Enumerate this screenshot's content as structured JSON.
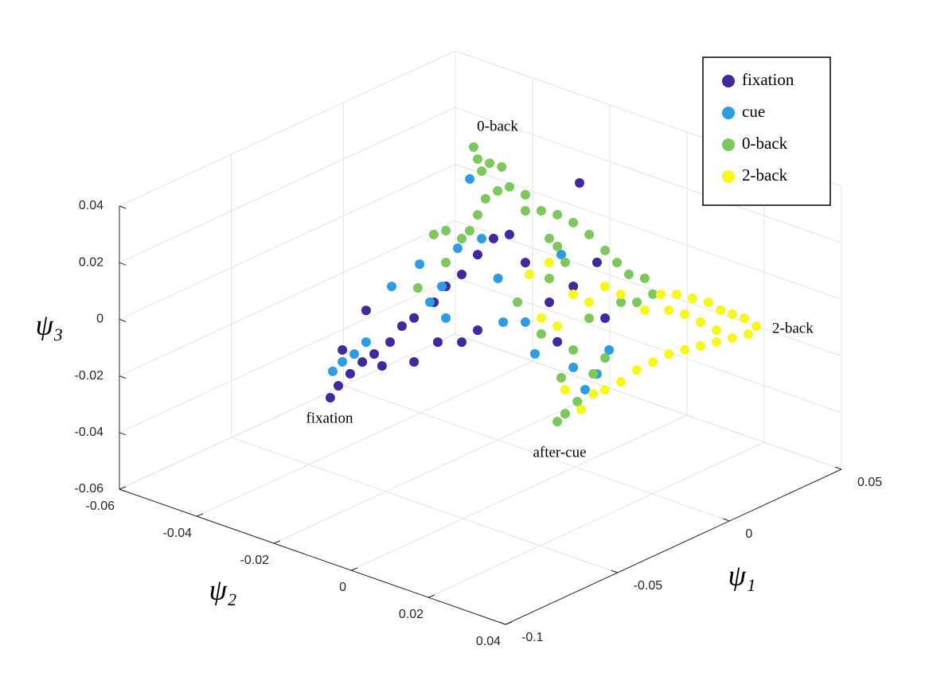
{
  "chart_data": {
    "type": "scatter3d",
    "xlabel": "ψ₁",
    "ylabel": "ψ₂",
    "zlabel": "ψ₃",
    "xlim": [
      -0.1,
      0.05
    ],
    "ylim": [
      -0.06,
      0.04
    ],
    "zlim": [
      -0.06,
      0.04
    ],
    "xticks": [
      -0.1,
      -0.05,
      0,
      0.05
    ],
    "yticks": [
      -0.06,
      -0.04,
      -0.02,
      0,
      0.02,
      0.04
    ],
    "zticks": [
      -0.06,
      -0.04,
      -0.02,
      0,
      0.02,
      0.04
    ],
    "grid": true,
    "legend": "northeast",
    "annotations": [
      "0-back",
      "2-back",
      "fixation",
      "after-cue"
    ],
    "series": [
      {
        "name": "fixation",
        "color": "#40299f",
        "x": [
          -0.0748,
          -0.0712,
          -0.0659,
          -0.0605,
          -0.0552,
          -0.0481,
          -0.0428,
          -0.0374,
          -0.0285,
          -0.0232,
          -0.0161,
          -0.009,
          -0.0019,
          0.0052,
          0.0123,
          0.023,
          0.0337,
          0.0443,
          0.0365,
          -0.0161,
          -0.009,
          -0.0268,
          -0.0374,
          -0.0517,
          -0.0588,
          -0.0694,
          0.0266,
          0.0479
        ],
        "y": [
          -0.02,
          -0.02,
          -0.02,
          -0.02,
          -0.02,
          -0.02,
          -0.02,
          -0.02,
          -0.02,
          -0.02,
          -0.02,
          -0.02,
          -0.02,
          -0.02,
          -0.02,
          -0.02,
          -0.02,
          -0.02,
          -0.02,
          -0.02,
          -0.02,
          -0.02,
          -0.02,
          -0.02,
          -0.02,
          -0.02,
          -0.02,
          -0.02
        ],
        "z": [
          -0.0178,
          -0.0149,
          -0.0126,
          -0.0104,
          -0.0095,
          -0.0079,
          -0.0042,
          -0.0033,
          -0.001,
          0.0027,
          0.0043,
          0.0087,
          0.0118,
          0.0106,
          -0.0019,
          -0.0198,
          -0.0181,
          -0.0135,
          0.0174,
          -0.0196,
          -0.018,
          -0.0157,
          -0.0188,
          -0.015,
          0.0072,
          -0.0029,
          -0.0351,
          -0.0345
        ]
      },
      {
        "name": "cue",
        "color": "#2c9ce4",
        "x": [
          -0.0737,
          -0.0694,
          -0.0641,
          -0.0588,
          -0.0474,
          -0.0349,
          -0.0303,
          -0.025,
          -0.0179,
          -0.0125,
          -0.0072,
          0.0001,
          0.0024,
          0.0123,
          0.0166,
          0.0283,
          0.0337,
          0.039,
          0.0497,
          0.0443,
          -0.0232
        ],
        "y": [
          -0.02,
          -0.02,
          -0.02,
          -0.02,
          -0.02,
          -0.02,
          -0.02,
          -0.02,
          -0.02,
          -0.02,
          -0.02,
          -0.02,
          -0.02,
          -0.02,
          -0.02,
          -0.02,
          -0.02,
          -0.02,
          -0.02,
          -0.02,
          -0.02
        ],
        "z": [
          -0.0089,
          -0.0071,
          -0.0063,
          -0.004,
          0.0115,
          0.0148,
          -0.0003,
          0.0033,
          0.0142,
          0.0367,
          0.0137,
          -0.003,
          -0.0193,
          -0.0229,
          -0.0357,
          -0.0049,
          -0.0467,
          -0.0565,
          -0.0464,
          -0.0529,
          -0.0085
        ]
      },
      {
        "name": "0-back",
        "color": "#7cc85c",
        "x": [
          0.0237,
          0.0255,
          0.0273,
          0.0308,
          0.0362,
          0.0344,
          0.029,
          0.0255,
          0.0219,
          0.0113,
          0.0059,
          0.0184,
          0.0397,
          0.0468,
          0.0194,
          0.0266,
          0.0337,
          0.0408,
          -0.0038,
          0.0015,
          0.0068,
          0.0139,
          0.0104,
          0.0175,
          0.0033,
          0.0123,
          0.023,
          0.0301,
          0.0266,
          0.0088,
          0.0194,
          0.0283,
          -0.0079,
          -0.0044,
          0.001,
          0.0081,
          0.0134,
          -0.0008,
          0.0063,
          0.023,
          -0.0357,
          -0.0232
        ],
        "y": [
          -0.04,
          -0.04,
          -0.04,
          -0.04,
          -0.04,
          -0.04,
          -0.04,
          -0.04,
          -0.04,
          -0.04,
          -0.04,
          -0.04,
          -0.04,
          -0.04,
          -0.02,
          -0.02,
          -0.02,
          -0.02,
          0.01,
          0.01,
          0.01,
          0.01,
          0.01,
          0.01,
          0.01,
          -0.02,
          -0.02,
          -0.02,
          -0.02,
          -0.02,
          -0.02,
          -0.02,
          0,
          0,
          0,
          0,
          0,
          0,
          0,
          -0.02,
          -0.02,
          -0.02
        ],
        "z": [
          0.0252,
          0.0203,
          0.0154,
          0.0169,
          0.0136,
          0.0058,
          0.005,
          0.0006,
          -0.0037,
          0.0002,
          0.0008,
          -0.0052,
          0.0053,
          -0.0001,
          0.0138,
          0.0098,
          0.0044,
          -0.0024,
          0.0226,
          0.0164,
          0.0103,
          0.0063,
          -0.0009,
          -0.0006,
          0.0017,
          0.0164,
          0.0027,
          -0.0083,
          -0.0014,
          -0.0146,
          -0.0297,
          -0.0484,
          -0.0411,
          -0.0396,
          -0.0373,
          -0.0301,
          -0.0264,
          -0.0184,
          -0.0098,
          -0.0114,
          0.0067,
          0.0111
        ]
      },
      {
        "name": "2-back",
        "color": "#f7f719",
        "x": [
          0.0465,
          0.0411,
          0.0358,
          0.0305,
          0.0251,
          0.018,
          0.0109,
          0.0038,
          0.0429,
          0.0358,
          0.0287,
          0.0216,
          0.0145,
          0.0074,
          0.0003,
          -0.0069,
          -0.014,
          -0.0211,
          -0.0264,
          0.0145,
          0.0216,
          0.0287,
          0.0074,
          -0.0033,
          -0.014,
          -0.0211,
          -0.0282,
          -0.0353,
          -0.046,
          -0.0549,
          -0.0495,
          -0.0389,
          -0.0317,
          -0.0424
        ],
        "y": [
          0.02,
          0.02,
          0.02,
          0.02,
          0.02,
          0.02,
          0.02,
          0.02,
          0.02,
          0.02,
          0.02,
          0.02,
          0.02,
          0.02,
          0.02,
          0.02,
          0.02,
          0.02,
          0.02,
          0.02,
          0.02,
          0.02,
          0.02,
          0.02,
          0.02,
          0.02,
          0.02,
          0.02,
          0.02,
          0.02,
          0.02,
          0.02,
          0.02,
          0.02
        ],
        "z": [
          -0.0177,
          -0.013,
          -0.0096,
          -0.0062,
          -0.0015,
          0.0025,
          0.0065,
          0.0091,
          -0.0192,
          -0.018,
          -0.0168,
          -0.0156,
          -0.0144,
          -0.0133,
          -0.0135,
          -0.0137,
          -0.0153,
          -0.0155,
          -0.015,
          -0.0018,
          -0.0072,
          -0.0126,
          0.0022,
          0.0061,
          0.0156,
          0.021,
          0.018,
          0.0234,
          0.0385,
          0.0376,
          0.0202,
          -0.009,
          -0.0186,
          0.0147
        ]
      }
    ]
  }
}
